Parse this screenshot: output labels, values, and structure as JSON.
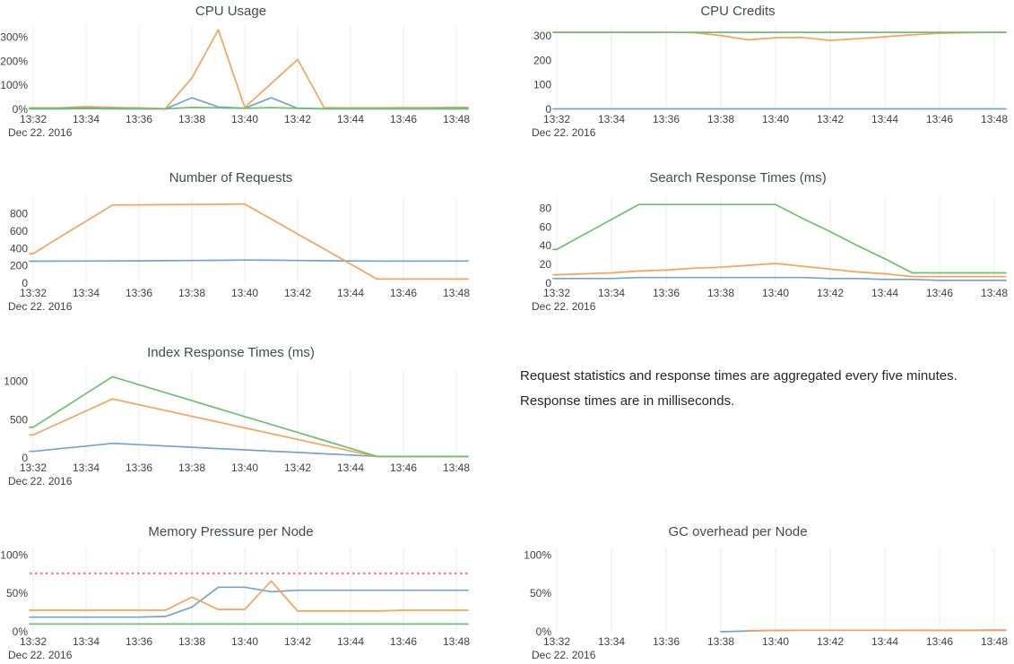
{
  "page": {
    "background": "#ffffff"
  },
  "colors": {
    "blue": "#74a3cc",
    "orange": "#f6a25a",
    "green": "#6fbf6f",
    "red_dashed": "#ef8080",
    "gridline": "#ebebeb",
    "tick_text": "#3f3f3f",
    "title_text": "#444a4f"
  },
  "timeline": {
    "times": [
      "13:32",
      "13:33",
      "13:34",
      "13:35",
      "13:36",
      "13:37",
      "13:38",
      "13:39",
      "13:40",
      "13:41",
      "13:42",
      "13:43",
      "13:44",
      "13:45",
      "13:46",
      "13:47",
      "13:48"
    ],
    "tick_labels": [
      "13:32",
      "13:34",
      "13:36",
      "13:38",
      "13:40",
      "13:42",
      "13:44",
      "13:46",
      "13:48"
    ],
    "date_label": "Dec 22. 2016"
  },
  "note": {
    "text": "Request statistics and response times are aggregated every five minutes. Response times are in milliseconds."
  },
  "chart_data": [
    {
      "type": "line",
      "title": "CPU Usage",
      "xlabel": "",
      "ylabel": "",
      "y_max": 335,
      "y_ticks": [
        {
          "value": 0,
          "label": "0%"
        },
        {
          "value": 100,
          "label": "100%"
        },
        {
          "value": 200,
          "label": "200%"
        },
        {
          "value": 300,
          "label": "300%"
        }
      ],
      "series": [
        {
          "color": "blue",
          "values": [
            2,
            2,
            3,
            2,
            2,
            2,
            48,
            10,
            5,
            48,
            4,
            2,
            2,
            2,
            2,
            2,
            2
          ]
        },
        {
          "color": "orange",
          "values": [
            6,
            6,
            11,
            8,
            6,
            3,
            130,
            330,
            8,
            107,
            207,
            7,
            6,
            6,
            7,
            7,
            8
          ]
        },
        {
          "color": "green",
          "values": [
            4,
            4,
            6,
            4,
            3,
            2,
            8,
            6,
            4,
            7,
            4,
            3,
            3,
            3,
            3,
            3,
            4
          ]
        }
      ]
    },
    {
      "type": "line",
      "title": "CPU Credits",
      "xlabel": "",
      "ylabel": "",
      "y_max": 330,
      "y_ticks": [
        {
          "value": 0,
          "label": "0"
        },
        {
          "value": 100,
          "label": "100"
        },
        {
          "value": 200,
          "label": "200"
        },
        {
          "value": 300,
          "label": "300"
        }
      ],
      "series": [
        {
          "color": "blue",
          "values": [
            2,
            2,
            2,
            2,
            2,
            2,
            2,
            2,
            2,
            2,
            2,
            2,
            2,
            2,
            2,
            2,
            2
          ]
        },
        {
          "color": "orange",
          "values": [
            315,
            315,
            315,
            315,
            315,
            314,
            302,
            284,
            293,
            294,
            282,
            289,
            297,
            305,
            311,
            314,
            315
          ]
        },
        {
          "color": "green",
          "values": [
            315,
            315,
            315,
            315,
            315,
            315,
            315,
            315,
            315,
            315,
            315,
            315,
            315,
            315,
            315,
            315,
            315
          ]
        }
      ]
    },
    {
      "type": "line",
      "title": "Number of Requests",
      "xlabel": "",
      "ylabel": "",
      "y_max": 950,
      "y_ticks": [
        {
          "value": 0,
          "label": "0"
        },
        {
          "value": 200,
          "label": "200"
        },
        {
          "value": 400,
          "label": "400"
        },
        {
          "value": 600,
          "label": "600"
        },
        {
          "value": 800,
          "label": "800"
        }
      ],
      "series": [
        {
          "color": "blue",
          "values": [
            253,
            254,
            255,
            256,
            257,
            259,
            261,
            263,
            266,
            264,
            261,
            258,
            256,
            254,
            254,
            254,
            255
          ]
        },
        {
          "color": "orange",
          "values": [
            340,
            530,
            715,
            900,
            903,
            905,
            907,
            909,
            912,
            739,
            566,
            394,
            221,
            48,
            48,
            48,
            48
          ]
        }
      ]
    },
    {
      "type": "line",
      "title": "Search Response Times (ms)",
      "xlabel": "",
      "ylabel": "",
      "y_max": 88,
      "y_ticks": [
        {
          "value": 0,
          "label": "0"
        },
        {
          "value": 20,
          "label": "20"
        },
        {
          "value": 40,
          "label": "40"
        },
        {
          "value": 60,
          "label": "60"
        },
        {
          "value": 80,
          "label": "80"
        }
      ],
      "series": [
        {
          "color": "blue",
          "values": [
            5,
            5,
            5,
            6,
            6,
            6,
            6,
            6,
            6,
            6,
            5,
            5,
            4,
            4,
            3,
            3,
            3
          ]
        },
        {
          "color": "orange",
          "values": [
            9,
            10,
            11,
            13,
            14,
            16,
            17,
            19,
            21,
            18,
            15,
            12,
            10,
            7,
            7,
            7,
            7
          ]
        },
        {
          "color": "green",
          "values": [
            36,
            52,
            68,
            84,
            84,
            84,
            84,
            84,
            84,
            69,
            55,
            40,
            26,
            11,
            11,
            11,
            11
          ]
        }
      ]
    },
    {
      "type": "line",
      "title": "Index Response Times (ms)",
      "xlabel": "",
      "ylabel": "",
      "y_max": 1100,
      "y_ticks": [
        {
          "value": 0,
          "label": "0"
        },
        {
          "value": 500,
          "label": "500"
        },
        {
          "value": 1000,
          "label": "1000"
        }
      ],
      "series": [
        {
          "color": "blue",
          "values": [
            85,
            120,
            155,
            190,
            173,
            156,
            139,
            122,
            105,
            88,
            71,
            54,
            37,
            20,
            20,
            20,
            20
          ]
        },
        {
          "color": "orange",
          "values": [
            300,
            457,
            613,
            770,
            694,
            619,
            543,
            468,
            392,
            317,
            241,
            166,
            90,
            15,
            15,
            15,
            15
          ]
        },
        {
          "color": "green",
          "values": [
            400,
            620,
            840,
            1060,
            956,
            852,
            748,
            644,
            540,
            436,
            332,
            228,
            124,
            20,
            20,
            20,
            20
          ]
        }
      ]
    },
    {
      "type": "line",
      "title": "Memory Pressure per Node",
      "xlabel": "",
      "ylabel": "",
      "y_max": 105,
      "y_ticks": [
        {
          "value": 0,
          "label": "0%"
        },
        {
          "value": 50,
          "label": "50%"
        },
        {
          "value": 100,
          "label": "100%"
        }
      ],
      "threshold": {
        "value": 76,
        "color": "red_dashed"
      },
      "series": [
        {
          "color": "blue",
          "values": [
            19,
            19,
            19,
            19,
            19,
            20,
            32,
            58,
            58,
            52,
            54,
            54,
            54,
            54,
            54,
            54,
            54
          ]
        },
        {
          "color": "orange",
          "values": [
            28,
            28,
            28,
            28,
            28,
            28,
            45,
            29,
            29,
            66,
            27,
            27,
            27,
            27,
            28,
            28,
            28
          ]
        },
        {
          "color": "green",
          "values": [
            10,
            10,
            10,
            10,
            10,
            10,
            10,
            10,
            10,
            10,
            10,
            10,
            10,
            10,
            10,
            10,
            10
          ]
        }
      ]
    },
    {
      "type": "line",
      "title": "GC overhead per Node",
      "xlabel": "",
      "ylabel": "",
      "y_max": 105,
      "y_ticks": [
        {
          "value": 0,
          "label": "0%"
        },
        {
          "value": 50,
          "label": "50%"
        },
        {
          "value": 100,
          "label": "100%"
        }
      ],
      "series": [
        {
          "color": "blue",
          "values": [
            null,
            null,
            null,
            null,
            null,
            null,
            0,
            1,
            1.8,
            2,
            2,
            2,
            2,
            2,
            2,
            2,
            2.2
          ]
        },
        {
          "color": "orange",
          "values": [
            null,
            null,
            null,
            null,
            null,
            null,
            null,
            1.5,
            1.8,
            2,
            2,
            2,
            2,
            1.8,
            1.8,
            1.8,
            1.8
          ]
        }
      ]
    }
  ]
}
